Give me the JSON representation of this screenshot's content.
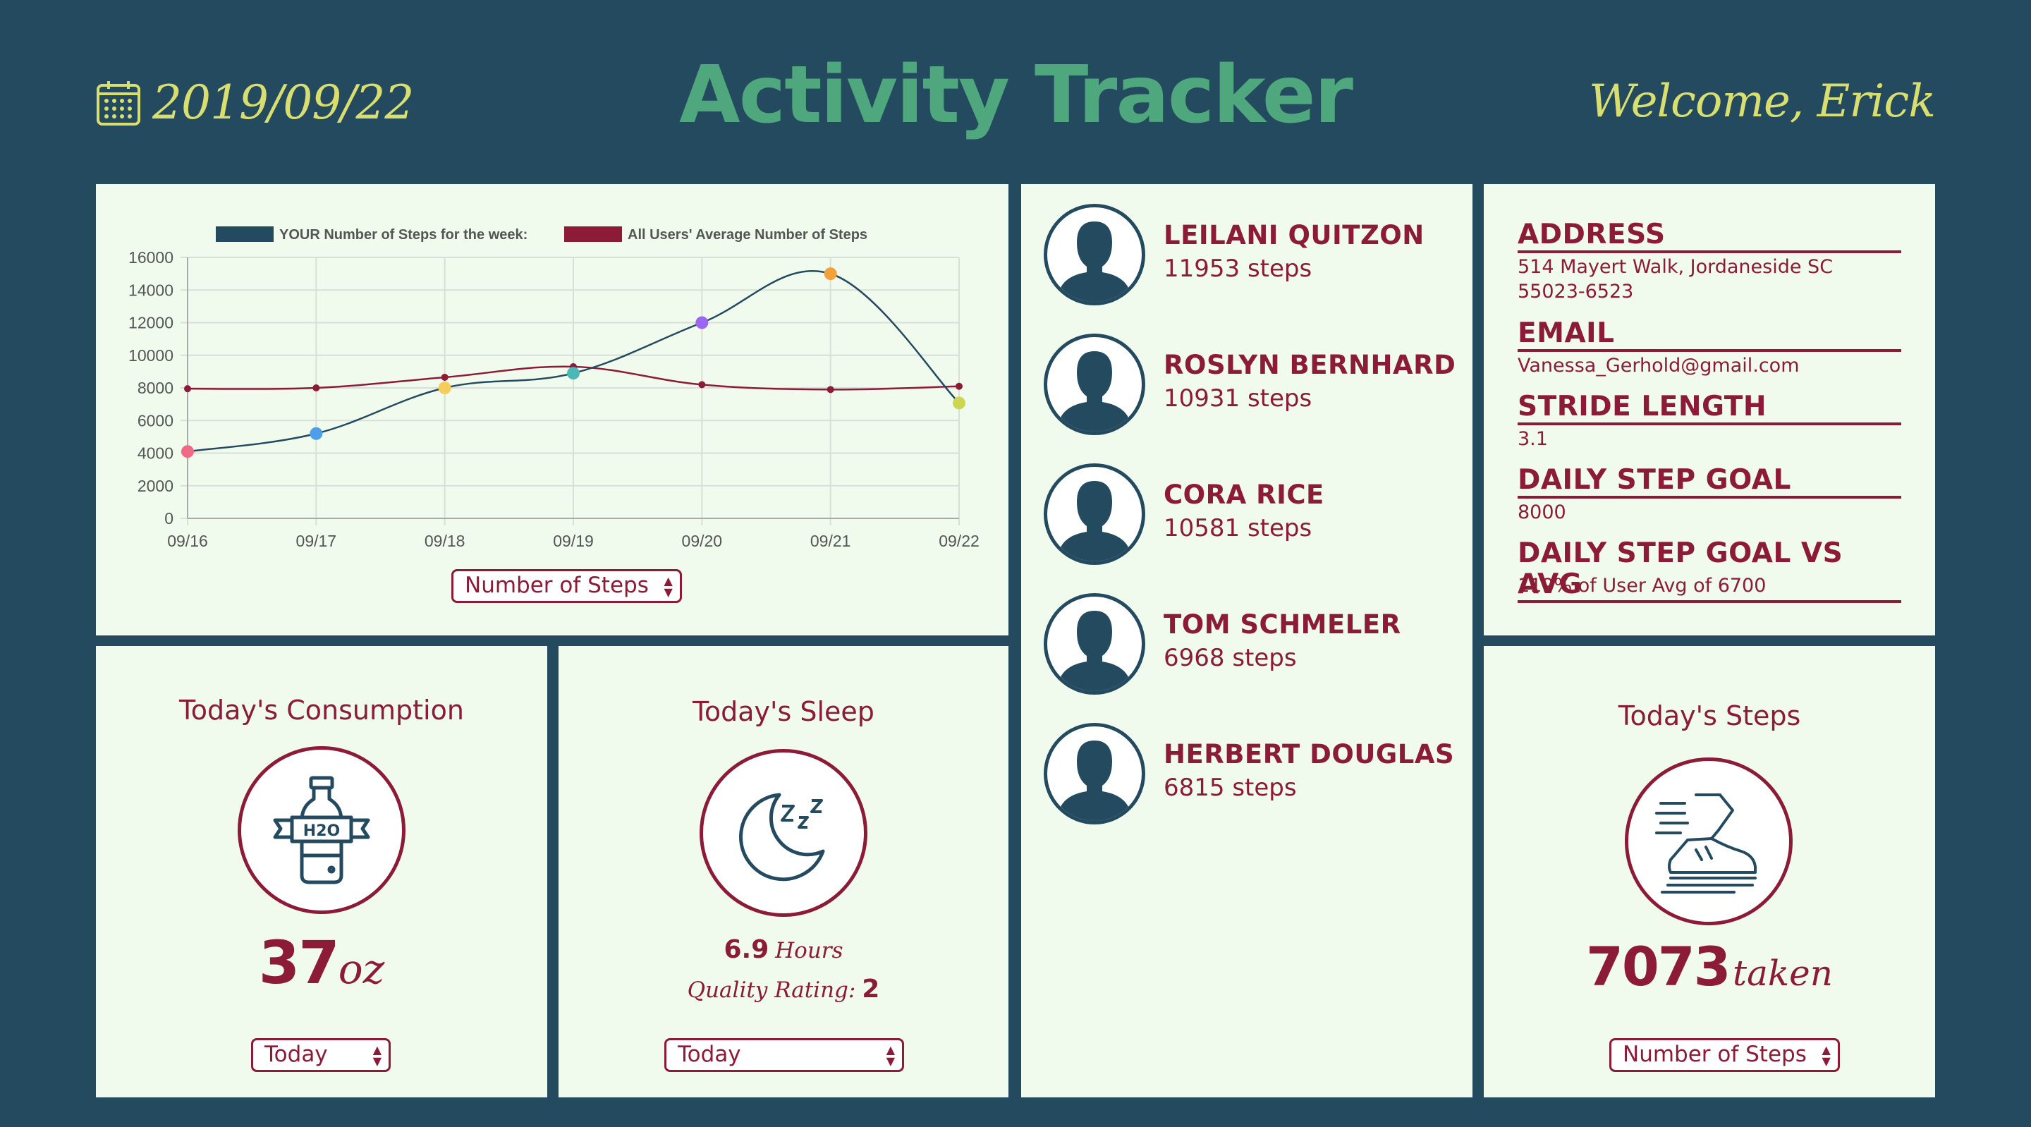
{
  "header": {
    "date": "2019/09/22",
    "title": "Activity Tracker",
    "welcome": "Welcome, Erick"
  },
  "colors": {
    "background": "#244a60",
    "panel": "#f0fbee",
    "accent": "#8b1b36",
    "title": "#4fa77d",
    "highlight": "#d9df6e"
  },
  "chart_data": {
    "type": "line",
    "categories": [
      "09/16",
      "09/17",
      "09/18",
      "09/19",
      "09/20",
      "09/21",
      "09/22"
    ],
    "series": [
      {
        "name": "YOUR Number of Steps for the week:",
        "color": "#244a60",
        "values": [
          4100,
          5200,
          8000,
          8900,
          12000,
          15000,
          7073
        ],
        "point_colors": [
          "#f06a85",
          "#4da0e8",
          "#f5cd5a",
          "#4bb7b7",
          "#9b66f0",
          "#f5a13a",
          "#cdd650"
        ]
      },
      {
        "name": "All Users' Average Number of Steps",
        "color": "#8b1b36",
        "values": [
          7950,
          8000,
          8650,
          9300,
          8200,
          7900,
          8100
        ]
      }
    ],
    "yticks": [
      "0",
      "2000",
      "4000",
      "6000",
      "8000",
      "10000",
      "12000",
      "14000",
      "16000"
    ],
    "ylim": [
      0,
      16000
    ],
    "grid": true,
    "legend_position": "top"
  },
  "chart_select": {
    "value": "Number of Steps"
  },
  "consumption": {
    "title": "Today's Consumption",
    "bottle_label": "H2O",
    "value": "37",
    "unit": "oz",
    "select": "Today"
  },
  "sleep": {
    "title": "Today's Sleep",
    "hours_value": "6.9",
    "hours_unit": "Hours",
    "quality_label": "Quality Rating:",
    "quality_value": "2",
    "select": "Today"
  },
  "users": [
    {
      "name": "LEILANI QUITZON",
      "steps": "11953 steps"
    },
    {
      "name": "ROSLYN BERNHARD",
      "steps": "10931 steps"
    },
    {
      "name": "CORA RICE",
      "steps": "10581 steps"
    },
    {
      "name": "TOM SCHMELER",
      "steps": "6968 steps"
    },
    {
      "name": "HERBERT DOUGLAS",
      "steps": "6815 steps"
    }
  ],
  "info": {
    "address_label": "ADDRESS",
    "address_line1": "514 Mayert Walk, Jordaneside SC",
    "address_line2": "55023-6523",
    "email_label": "EMAIL",
    "email": "Vanessa_Gerhold@gmail.com",
    "stride_label": "STRIDE LENGTH",
    "stride": "3.1",
    "goal_label": "DAILY STEP GOAL",
    "goal": "8000",
    "vs_label": "DAILY STEP GOAL VS AVG",
    "vs": "119% of User Avg of 6700"
  },
  "steps": {
    "title": "Today's Steps",
    "value": "7073",
    "unit": "taken",
    "select": "Number of Steps"
  }
}
